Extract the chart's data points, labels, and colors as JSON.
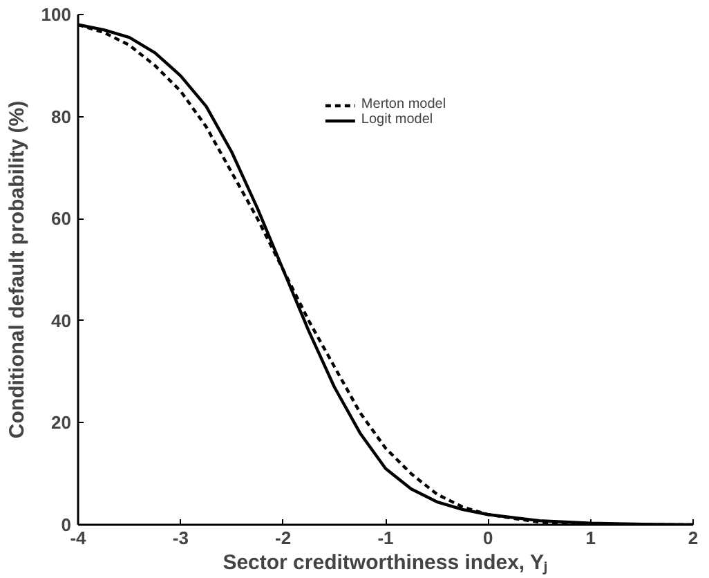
{
  "chart_data": {
    "type": "line",
    "xlabel": "Sector creditworthiness index, Yⱼ",
    "ylabel": "Conditional default probability (%)",
    "xlim": [
      -4,
      2
    ],
    "ylim": [
      0,
      100
    ],
    "xticks": [
      -4,
      -3,
      -2,
      -1,
      0,
      1,
      2
    ],
    "yticks": [
      0,
      20,
      40,
      60,
      80,
      100
    ],
    "grid": false,
    "legend": "top",
    "marker": "none",
    "x": [
      -4,
      -3.75,
      -3.5,
      -3.25,
      -3,
      -2.75,
      -2.5,
      -2.25,
      -2,
      -1.75,
      -1.5,
      -1.25,
      -1,
      -0.75,
      -0.5,
      -0.25,
      0,
      0.5,
      1,
      1.5,
      2
    ],
    "series": [
      {
        "name": "Merton model",
        "color": "#000000",
        "line_style": "dashed",
        "values": [
          98,
          96.5,
          94,
          90,
          85,
          78,
          69,
          60,
          50,
          40,
          31,
          22,
          15,
          10,
          6,
          3.5,
          2,
          0.5,
          0.1,
          0,
          0
        ]
      },
      {
        "name": "Logit model",
        "color": "#000000",
        "line_style": "solid",
        "values": [
          98,
          97,
          95.5,
          92.5,
          88,
          82,
          73,
          62,
          50,
          38,
          27,
          18,
          11,
          7,
          4.5,
          3,
          2,
          0.8,
          0.3,
          0.1,
          0
        ]
      }
    ]
  }
}
